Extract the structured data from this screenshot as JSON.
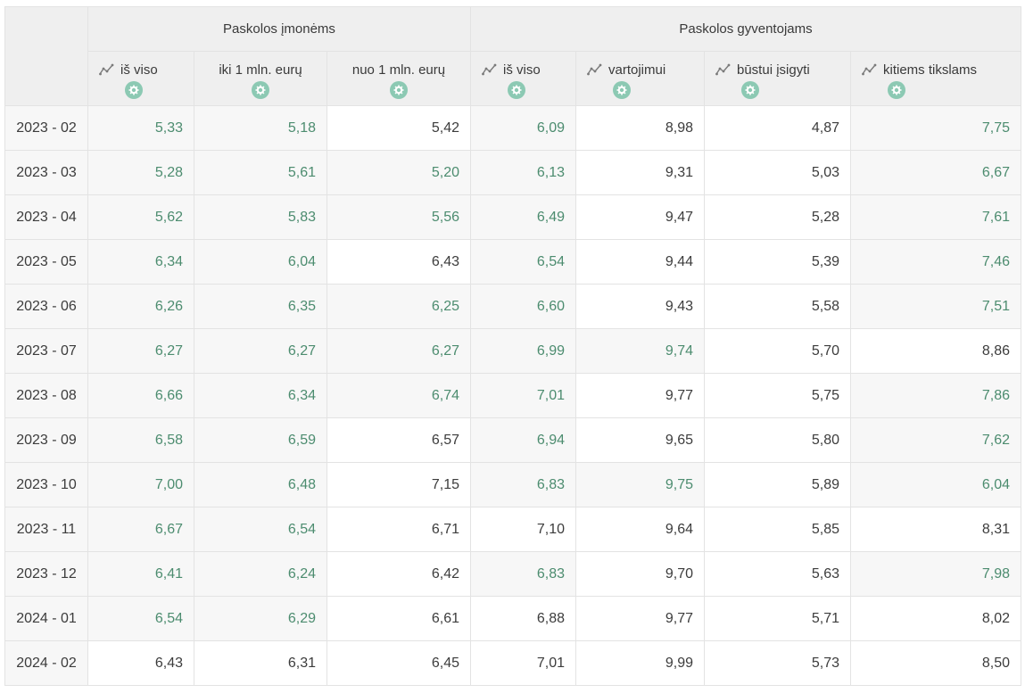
{
  "groups": {
    "companies": "Paskolos įmonėms",
    "households": "Paskolos gyventojams"
  },
  "columns": [
    {
      "label": "iš viso",
      "trend_icon": "trend-chart-icon",
      "settings_icon": "gear-icon"
    },
    {
      "label": "iki 1 mln. eurų",
      "trend_icon": null,
      "settings_icon": "gear-icon"
    },
    {
      "label": "nuo 1 mln. eurų",
      "trend_icon": null,
      "settings_icon": "gear-icon"
    },
    {
      "label": "iš viso",
      "trend_icon": "trend-chart-icon",
      "settings_icon": "gear-icon"
    },
    {
      "label": "vartojimui",
      "trend_icon": "trend-chart-icon",
      "settings_icon": "gear-icon"
    },
    {
      "label": "būstui įsigyti",
      "trend_icon": "trend-chart-icon",
      "settings_icon": "gear-icon"
    },
    {
      "label": "kitiems tikslams",
      "trend_icon": "trend-chart-icon",
      "settings_icon": "gear-icon"
    }
  ],
  "rows": [
    {
      "period": "2023 - 02",
      "values": [
        "5,33",
        "5,18",
        "5,42",
        "6,09",
        "8,98",
        "4,87",
        "7,75"
      ]
    },
    {
      "period": "2023 - 03",
      "values": [
        "5,28",
        "5,61",
        "5,20",
        "6,13",
        "9,31",
        "5,03",
        "6,67"
      ]
    },
    {
      "period": "2023 - 04",
      "values": [
        "5,62",
        "5,83",
        "5,56",
        "6,49",
        "9,47",
        "5,28",
        "7,61"
      ]
    },
    {
      "period": "2023 - 05",
      "values": [
        "6,34",
        "6,04",
        "6,43",
        "6,54",
        "9,44",
        "5,39",
        "7,46"
      ]
    },
    {
      "period": "2023 - 06",
      "values": [
        "6,26",
        "6,35",
        "6,25",
        "6,60",
        "9,43",
        "5,58",
        "7,51"
      ]
    },
    {
      "period": "2023 - 07",
      "values": [
        "6,27",
        "6,27",
        "6,27",
        "6,99",
        "9,74",
        "5,70",
        "8,86"
      ]
    },
    {
      "period": "2023 - 08",
      "values": [
        "6,66",
        "6,34",
        "6,74",
        "7,01",
        "9,77",
        "5,75",
        "7,86"
      ]
    },
    {
      "period": "2023 - 09",
      "values": [
        "6,58",
        "6,59",
        "6,57",
        "6,94",
        "9,65",
        "5,80",
        "7,62"
      ]
    },
    {
      "period": "2023 - 10",
      "values": [
        "7,00",
        "6,48",
        "7,15",
        "6,83",
        "9,75",
        "5,89",
        "6,04"
      ]
    },
    {
      "period": "2023 - 11",
      "values": [
        "6,67",
        "6,54",
        "6,71",
        "7,10",
        "9,64",
        "5,85",
        "8,31"
      ]
    },
    {
      "period": "2023 - 12",
      "values": [
        "6,41",
        "6,24",
        "6,42",
        "6,83",
        "9,70",
        "5,63",
        "7,98"
      ]
    },
    {
      "period": "2024 - 01",
      "values": [
        "6,54",
        "6,29",
        "6,61",
        "6,88",
        "9,77",
        "5,71",
        "8,02"
      ]
    },
    {
      "period": "2024 - 02",
      "values": [
        "6,43",
        "6,31",
        "6,45",
        "7,01",
        "9,99",
        "5,73",
        "8,50"
      ]
    }
  ],
  "highlight_map": [
    [
      "g",
      "g",
      "d",
      "g",
      "d",
      "d",
      "g"
    ],
    [
      "g",
      "g",
      "g",
      "g",
      "d",
      "d",
      "g"
    ],
    [
      "g",
      "g",
      "g",
      "g",
      "d",
      "d",
      "g"
    ],
    [
      "g",
      "g",
      "d",
      "g",
      "d",
      "d",
      "g"
    ],
    [
      "g",
      "g",
      "g",
      "g",
      "d",
      "d",
      "g"
    ],
    [
      "g",
      "g",
      "g",
      "g",
      "g",
      "d",
      "d"
    ],
    [
      "g",
      "g",
      "g",
      "g",
      "d",
      "d",
      "g"
    ],
    [
      "g",
      "g",
      "d",
      "g",
      "d",
      "d",
      "g"
    ],
    [
      "g",
      "g",
      "d",
      "g",
      "g",
      "d",
      "g"
    ],
    [
      "g",
      "g",
      "d",
      "d",
      "d",
      "d",
      "d"
    ],
    [
      "g",
      "g",
      "d",
      "g",
      "d",
      "d",
      "g"
    ],
    [
      "g",
      "g",
      "d",
      "d",
      "d",
      "d",
      "d"
    ],
    [
      "d",
      "d",
      "d",
      "d",
      "d",
      "d",
      "d"
    ]
  ],
  "colors": {
    "highlight_text": "#4c8c6f",
    "default_text": "#3c3c3c",
    "gear_badge": "#8cc9b3",
    "header_bg": "#efefef"
  }
}
